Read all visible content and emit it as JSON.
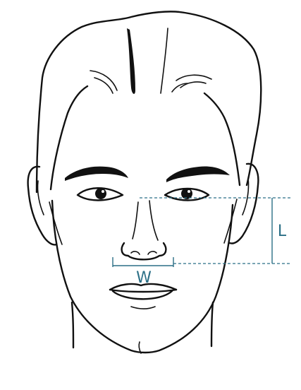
{
  "measurements": {
    "width_label": "W",
    "length_label": "L"
  },
  "colors": {
    "line": "#111111",
    "measure": "#2b6f86",
    "background": "#ffffff"
  }
}
